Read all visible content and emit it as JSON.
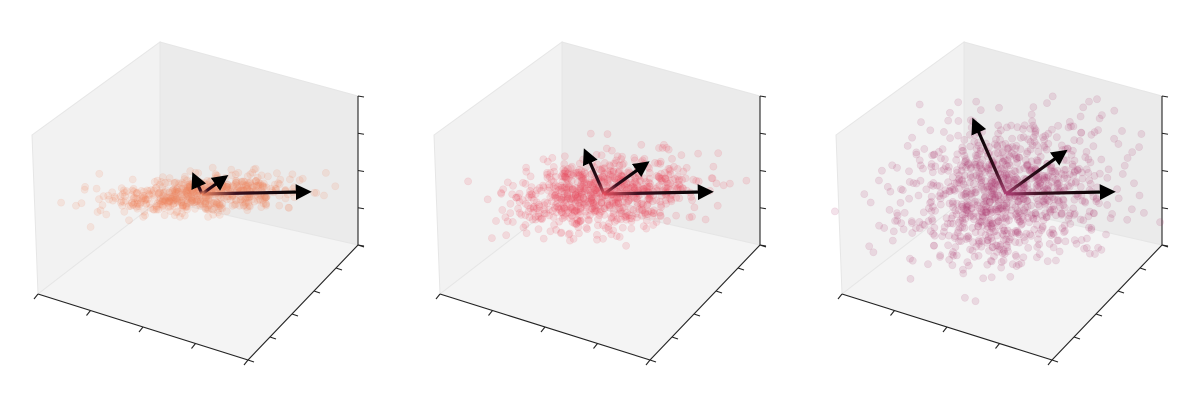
{
  "chart_data": [
    {
      "type": "scatter",
      "dimension": "3d",
      "title": "",
      "tick_labels": "none",
      "point_color": "#f0835f",
      "point_alpha": 0.15,
      "point_count": 600,
      "cloud_spread": {
        "x": 1.0,
        "y": 0.45,
        "z": 0.12
      },
      "principal_axes": [
        {
          "vector": [
            1.0,
            0.0,
            0.0
          ],
          "length": 1.0
        },
        {
          "vector": [
            0.0,
            1.0,
            0.0
          ],
          "length": 0.25
        },
        {
          "vector": [
            0.0,
            0.0,
            1.0
          ],
          "length": 0.15
        }
      ],
      "arrow_color": "#000000"
    },
    {
      "type": "scatter",
      "dimension": "3d",
      "title": "",
      "tick_labels": "none",
      "point_color": "#e84c5c",
      "point_alpha": 0.15,
      "point_count": 800,
      "cloud_spread": {
        "x": 0.9,
        "y": 0.6,
        "z": 0.45
      },
      "principal_axes": [
        {
          "vector": [
            1.0,
            0.0,
            0.0
          ],
          "length": 1.0
        },
        {
          "vector": [
            0.0,
            1.0,
            0.0
          ],
          "length": 0.55
        },
        {
          "vector": [
            0.0,
            0.0,
            1.0
          ],
          "length": 0.5
        }
      ],
      "arrow_color": "#000000"
    },
    {
      "type": "scatter",
      "dimension": "3d",
      "title": "",
      "tick_labels": "none",
      "point_color": "#b03a72",
      "point_alpha": 0.15,
      "point_count": 1000,
      "cloud_spread": {
        "x": 0.95,
        "y": 0.95,
        "z": 0.95
      },
      "principal_axes": [
        {
          "vector": [
            1.0,
            0.0,
            0.0
          ],
          "length": 1.0
        },
        {
          "vector": [
            0.0,
            1.0,
            0.0
          ],
          "length": 0.8
        },
        {
          "vector": [
            0.0,
            0.0,
            1.0
          ],
          "length": 0.95
        }
      ],
      "arrow_color": "#000000"
    }
  ]
}
